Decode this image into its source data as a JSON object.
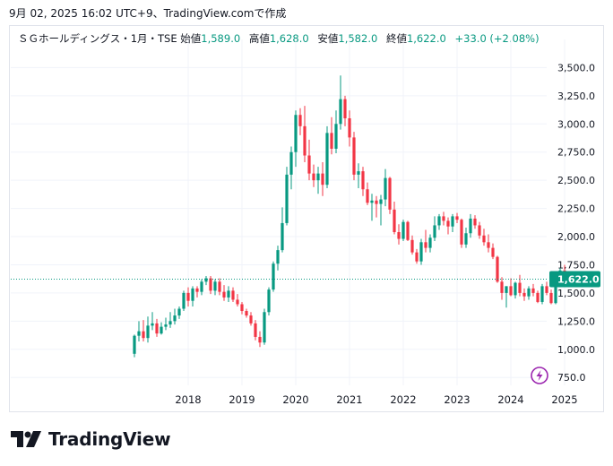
{
  "caption": "9月 02, 2025 16:02 UTC+9、TradingView.comで作成",
  "legend": {
    "symbol": "ＳＧホールディングス・1月・TSE",
    "open_label": "始値",
    "open": "1,589.0",
    "high_label": "高値",
    "high": "1,628.0",
    "low_label": "安値",
    "low": "1,582.0",
    "close_label": "終値",
    "close": "1,622.0",
    "change": "+33.0 (+2.08%)"
  },
  "brand": "TradingView",
  "colors": {
    "up": "#089981",
    "down": "#f23645",
    "price_tag": "#089981",
    "bolt": "#9c27b0"
  },
  "icons": {
    "bolt": "lightning-bolt-icon",
    "logo": "tradingview-logo-icon"
  },
  "chart_data": {
    "type": "candlestick",
    "title": "ＳＧホールディングス・1月・TSE",
    "interval": "1M",
    "last_price_label": "1,622.0",
    "last_price": 1622,
    "ylim": [
      680,
      3750
    ],
    "y_ticks": [
      750,
      1000,
      1250,
      1500,
      1750,
      2000,
      2250,
      2500,
      2750,
      3000,
      3250,
      3500
    ],
    "y_tick_labels": [
      "750.0",
      "1,000.0",
      "1,250.0",
      "1,500.0",
      "1,750.0",
      "2,000.0",
      "2,250.0",
      "2,500.0",
      "2,750.0",
      "3,000.0",
      "3,250.0",
      "3,500.0"
    ],
    "x_labels": [
      "2018",
      "2019",
      "2020",
      "2021",
      "2022",
      "2023",
      "2024",
      "2025"
    ],
    "x_label_months": [
      48,
      60,
      72,
      84,
      96,
      108,
      120,
      132
    ],
    "start_month_index": 36,
    "candles": [
      [
        960,
        1130,
        930,
        1120
      ],
      [
        1120,
        1250,
        1070,
        1160
      ],
      [
        1160,
        1260,
        1070,
        1100
      ],
      [
        1100,
        1290,
        1060,
        1210
      ],
      [
        1210,
        1330,
        1170,
        1230
      ],
      [
        1230,
        1270,
        1110,
        1140
      ],
      [
        1140,
        1240,
        1130,
        1200
      ],
      [
        1200,
        1280,
        1170,
        1220
      ],
      [
        1220,
        1330,
        1190,
        1250
      ],
      [
        1250,
        1360,
        1220,
        1300
      ],
      [
        1300,
        1380,
        1270,
        1360
      ],
      [
        1360,
        1520,
        1340,
        1500
      ],
      [
        1500,
        1550,
        1380,
        1430
      ],
      [
        1430,
        1560,
        1380,
        1540
      ],
      [
        1540,
        1560,
        1460,
        1510
      ],
      [
        1510,
        1620,
        1480,
        1600
      ],
      [
        1600,
        1650,
        1570,
        1630
      ],
      [
        1630,
        1650,
        1490,
        1520
      ],
      [
        1520,
        1620,
        1480,
        1600
      ],
      [
        1600,
        1630,
        1480,
        1510
      ],
      [
        1510,
        1570,
        1430,
        1460
      ],
      [
        1460,
        1560,
        1420,
        1520
      ],
      [
        1520,
        1550,
        1420,
        1440
      ],
      [
        1440,
        1490,
        1380,
        1400
      ],
      [
        1400,
        1420,
        1310,
        1340
      ],
      [
        1340,
        1360,
        1280,
        1300
      ],
      [
        1300,
        1330,
        1210,
        1230
      ],
      [
        1230,
        1260,
        1080,
        1110
      ],
      [
        1110,
        1160,
        1020,
        1060
      ],
      [
        1060,
        1360,
        1040,
        1330
      ],
      [
        1330,
        1550,
        1300,
        1530
      ],
      [
        1530,
        1780,
        1510,
        1760
      ],
      [
        1760,
        1920,
        1700,
        1880
      ],
      [
        1880,
        2260,
        1860,
        2120
      ],
      [
        2120,
        2620,
        2100,
        2550
      ],
      [
        2550,
        2800,
        2420,
        2750
      ],
      [
        2750,
        3120,
        2620,
        3080
      ],
      [
        3080,
        3140,
        2900,
        2980
      ],
      [
        2980,
        3160,
        2660,
        2720
      ],
      [
        2720,
        2860,
        2500,
        2560
      ],
      [
        2560,
        2640,
        2440,
        2500
      ],
      [
        2500,
        2620,
        2380,
        2560
      ],
      [
        2560,
        2660,
        2360,
        2460
      ],
      [
        2460,
        2980,
        2430,
        2920
      ],
      [
        2920,
        3060,
        2730,
        2780
      ],
      [
        2780,
        3120,
        2740,
        3000
      ],
      [
        3000,
        3430,
        2950,
        3220
      ],
      [
        3220,
        3250,
        2980,
        3050
      ],
      [
        3050,
        3120,
        2800,
        2880
      ],
      [
        2880,
        2930,
        2500,
        2550
      ],
      [
        2550,
        2650,
        2430,
        2580
      ],
      [
        2580,
        2620,
        2360,
        2420
      ],
      [
        2420,
        2480,
        2280,
        2300
      ],
      [
        2300,
        2380,
        2140,
        2320
      ],
      [
        2320,
        2360,
        2170,
        2290
      ],
      [
        2290,
        2370,
        2100,
        2330
      ],
      [
        2330,
        2600,
        2270,
        2520
      ],
      [
        2520,
        2530,
        2200,
        2240
      ],
      [
        2240,
        2310,
        2020,
        2040
      ],
      [
        2040,
        2110,
        1930,
        1980
      ],
      [
        1980,
        2150,
        1960,
        2130
      ],
      [
        2130,
        2140,
        1960,
        1970
      ],
      [
        1970,
        2010,
        1840,
        1860
      ],
      [
        1860,
        1890,
        1760,
        1780
      ],
      [
        1780,
        1980,
        1750,
        1950
      ],
      [
        1950,
        2060,
        1860,
        1900
      ],
      [
        1900,
        2020,
        1860,
        1990
      ],
      [
        1990,
        2180,
        1960,
        2100
      ],
      [
        2100,
        2200,
        2060,
        2180
      ],
      [
        2180,
        2220,
        2100,
        2140
      ],
      [
        2140,
        2170,
        2020,
        2090
      ],
      [
        2090,
        2200,
        2040,
        2180
      ],
      [
        2180,
        2210,
        2120,
        2150
      ],
      [
        2150,
        2160,
        1900,
        1930
      ],
      [
        1930,
        2080,
        1900,
        2030
      ],
      [
        2030,
        2200,
        1990,
        2160
      ],
      [
        2160,
        2190,
        2070,
        2100
      ],
      [
        2100,
        2130,
        1980,
        2010
      ],
      [
        2010,
        2070,
        1920,
        1950
      ],
      [
        1950,
        2020,
        1860,
        1900
      ],
      [
        1900,
        1940,
        1800,
        1820
      ],
      [
        1820,
        1830,
        1590,
        1600
      ],
      [
        1600,
        1640,
        1440,
        1500
      ],
      [
        1500,
        1560,
        1370,
        1560
      ],
      [
        1560,
        1630,
        1470,
        1480
      ],
      [
        1480,
        1600,
        1450,
        1590
      ],
      [
        1590,
        1660,
        1470,
        1500
      ],
      [
        1500,
        1540,
        1430,
        1470
      ],
      [
        1470,
        1560,
        1440,
        1540
      ],
      [
        1540,
        1580,
        1470,
        1500
      ],
      [
        1500,
        1520,
        1410,
        1420
      ],
      [
        1420,
        1580,
        1400,
        1560
      ],
      [
        1560,
        1600,
        1480,
        1500
      ],
      [
        1500,
        1530,
        1400,
        1410
      ],
      [
        1410,
        1620,
        1400,
        1600
      ],
      [
        1600,
        1720,
        1560,
        1700
      ],
      [
        1700,
        1750,
        1580,
        1600
      ],
      [
        1600,
        1660,
        1570,
        1590
      ],
      [
        1589,
        1628,
        1582,
        1622
      ]
    ]
  }
}
